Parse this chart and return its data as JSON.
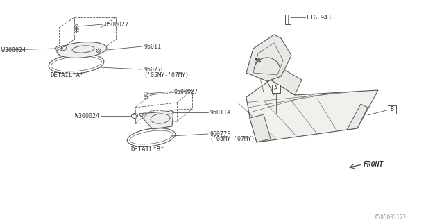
{
  "bg_color": "#ffffff",
  "line_color": "#555555",
  "line_color_dark": "#222222",
  "text_color": "#333333",
  "title_bottom": "A505001122",
  "labels": {
    "screw_A": "0500027",
    "washer_A": "W300024",
    "cover_A": "96011",
    "gasket_A": "96077E",
    "gasket_A_year": "('05MY-'07MY)",
    "detail_A": "DETAIL*A*",
    "screw_B": "0500027",
    "washer_B": "W300024",
    "cover_B": "96011A",
    "gasket_B": "96077F",
    "gasket_B_year": "('05MY-'07MY)",
    "detail_B": "DETAIL*B*",
    "fig_ref": "FIG.943",
    "front": "FRONT",
    "label_A": "A",
    "label_B": "B"
  },
  "font_size": 6.0
}
